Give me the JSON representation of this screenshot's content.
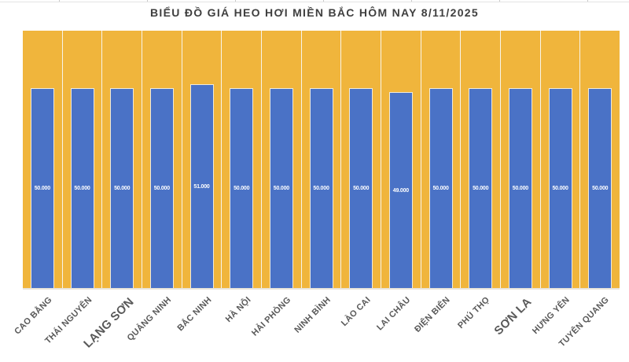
{
  "title": "BIỂU ĐỒ GIÁ HEO HƠI MIỀN BẮC HÔM NAY 8/11/2025",
  "colors": {
    "plot_background": "#f0b53c",
    "bar": "#4a72c6",
    "bar_border": "#f0eada",
    "column_gridline": "#f8f4e9",
    "title_text": "#3f3f3f",
    "axis_label_text": "#595959",
    "value_label_text": "#ffffff"
  },
  "chart_data": {
    "type": "bar",
    "title": "BIỂU ĐỒ GIÁ HEO HƠI MIỀN BẮC HÔM NAY 8/11/2025",
    "categories": [
      "CAO BẰNG",
      "THÁI NGUYÊN",
      "LẠNG SƠN",
      "QUẢNG NINH",
      "BẮC NINH",
      "HÀ NỘI",
      "HẢI PHÒNG",
      "NINH BÌNH",
      "LÀO CAI",
      "LAI CHÂU",
      "ĐIỆN BIÊN",
      "PHÚ THỌ",
      "SƠN LA",
      "HƯNG YÊN",
      "TUYÊN QUANG"
    ],
    "values": [
      50000,
      50000,
      50000,
      50000,
      51000,
      50000,
      50000,
      50000,
      50000,
      49000,
      50000,
      50000,
      50000,
      50000,
      50000
    ],
    "value_labels": [
      "50.000",
      "50.000",
      "50.000",
      "50.000",
      "51.000",
      "50.000",
      "50.000",
      "50.000",
      "50.000",
      "49.000",
      "50.000",
      "50.000",
      "50.000",
      "50.000",
      "50.000"
    ],
    "emphasized_categories": [
      "LẠNG SƠN",
      "SƠN LA"
    ],
    "xlabel": "",
    "ylabel": "",
    "ylim": [
      0,
      65000
    ],
    "legend": "none",
    "grid": "vertical-category-separators",
    "value_label_position": "inside-center",
    "x_label_rotation_deg": 45
  }
}
